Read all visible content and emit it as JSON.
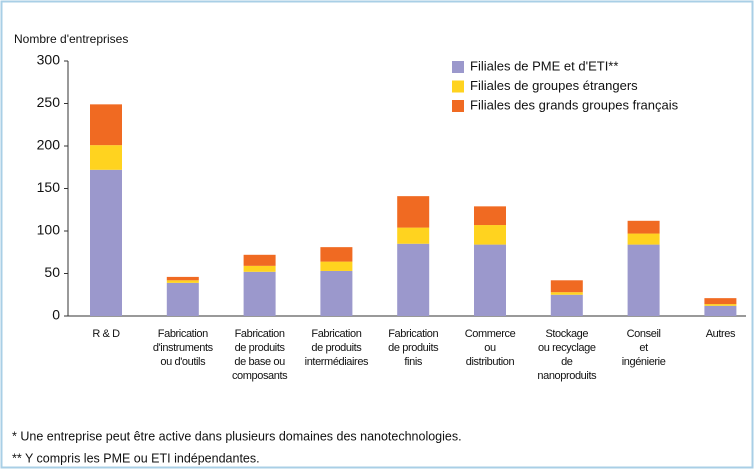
{
  "chart_data": {
    "type": "stacked_bar",
    "y_axis_label": "Nombre d'entreprises",
    "categories": [
      [
        "R & D"
      ],
      [
        "Fabrication",
        "d'instruments",
        "ou d'outils"
      ],
      [
        "Fabrication",
        "de produits",
        "de base ou",
        "composants"
      ],
      [
        "Fabrication",
        "de produits",
        "intermédiaires"
      ],
      [
        "Fabrication",
        "de produits",
        "finis"
      ],
      [
        "Commerce",
        "ou",
        "distribution"
      ],
      [
        "Stockage",
        "ou recyclage",
        "de",
        "nanoproduits"
      ],
      [
        "Conseil",
        "et",
        "ingénierie"
      ],
      [
        "Autres"
      ]
    ],
    "series": [
      {
        "name": "Filiales de PME et d'ETI**",
        "color": "#9b98cc",
        "values": [
          172,
          39,
          52,
          53,
          85,
          84,
          25,
          84,
          12
        ]
      },
      {
        "name": "Filiales de groupes étrangers",
        "color": "#ffd31f",
        "values": [
          29,
          3,
          7,
          11,
          19,
          23,
          3,
          13,
          2
        ]
      },
      {
        "name": "Filiales des grands groupes français",
        "color": "#f06a22",
        "values": [
          48,
          4,
          13,
          17,
          37,
          22,
          14,
          15,
          7
        ]
      }
    ],
    "ylim": [
      0,
      300
    ],
    "yticks": [
      0,
      50,
      100,
      150,
      200,
      250,
      300
    ],
    "legend": "top-right",
    "notes": [
      "* Une entreprise peut être active dans plusieurs domaines des nanotechnologies.",
      "** Y compris les PME ou ETI indépendantes."
    ]
  }
}
